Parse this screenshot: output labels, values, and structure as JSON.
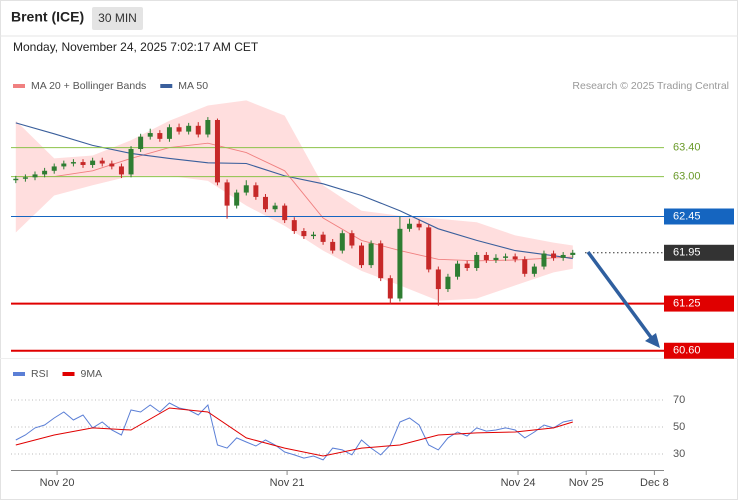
{
  "header": {
    "title": "Brent (ICE)",
    "interval": "30 MIN",
    "datetime": "Monday, November 24, 2025 7:02:17 AM CET"
  },
  "chart_data": [
    {
      "type": "candlestick",
      "credit": "Research © 2025 Trading Central",
      "up_color": "#2e7d32",
      "down_color": "#c62828",
      "xlim": [
        -0.5,
        67.5
      ],
      "ylim": [
        60.5,
        64.4
      ],
      "open": [
        62.95,
        62.97,
        62.99,
        63.03,
        63.08,
        63.14,
        63.18,
        63.2,
        63.16,
        63.22,
        63.18,
        63.14,
        63.03,
        63.38,
        63.55,
        63.6,
        63.52,
        63.68,
        63.62,
        63.7,
        63.58,
        63.78,
        62.92,
        62.6,
        62.78,
        62.88,
        62.72,
        62.55,
        62.6,
        62.4,
        62.25,
        62.18,
        62.2,
        62.1,
        61.98,
        62.22,
        62.05,
        61.78,
        62.08,
        61.6,
        61.32,
        62.28,
        62.35,
        62.3,
        61.72,
        61.45,
        61.62,
        61.8,
        61.74,
        61.92,
        61.85,
        61.88,
        61.9,
        61.86,
        61.66,
        61.76,
        61.94,
        61.88,
        61.92
      ],
      "high": [
        63.01,
        63.03,
        63.07,
        63.12,
        63.18,
        63.22,
        63.24,
        63.24,
        63.26,
        63.26,
        63.22,
        63.18,
        63.42,
        63.59,
        63.66,
        63.64,
        63.72,
        63.73,
        63.74,
        63.75,
        63.82,
        63.8,
        62.96,
        62.82,
        62.95,
        62.92,
        62.76,
        62.64,
        62.63,
        62.44,
        62.29,
        62.24,
        62.24,
        62.14,
        62.26,
        62.26,
        62.09,
        62.12,
        62.12,
        61.64,
        62.45,
        62.42,
        62.4,
        62.34,
        61.76,
        61.66,
        61.84,
        61.84,
        61.96,
        61.96,
        61.93,
        61.94,
        61.94,
        61.9,
        61.8,
        61.98,
        61.98,
        61.96,
        61.99
      ],
      "low": [
        62.91,
        62.93,
        62.95,
        62.99,
        63.04,
        63.1,
        63.14,
        63.12,
        63.12,
        63.14,
        63.1,
        62.98,
        62.99,
        63.34,
        63.51,
        63.48,
        63.48,
        63.58,
        63.58,
        63.54,
        63.54,
        62.88,
        62.42,
        62.56,
        62.74,
        62.68,
        62.51,
        62.51,
        62.36,
        62.21,
        62.14,
        62.14,
        62.06,
        61.94,
        61.94,
        62.01,
        61.74,
        61.74,
        61.56,
        61.24,
        61.28,
        62.24,
        62.26,
        61.68,
        61.22,
        61.41,
        61.58,
        61.7,
        61.7,
        61.81,
        61.81,
        61.84,
        61.82,
        61.62,
        61.62,
        61.72,
        61.84,
        61.84,
        61.88
      ],
      "close": [
        62.97,
        62.99,
        63.03,
        63.08,
        63.14,
        63.18,
        63.2,
        63.16,
        63.22,
        63.18,
        63.14,
        63.03,
        63.38,
        63.55,
        63.6,
        63.52,
        63.68,
        63.62,
        63.7,
        63.58,
        63.78,
        62.92,
        62.6,
        62.78,
        62.88,
        62.72,
        62.55,
        62.6,
        62.4,
        62.25,
        62.18,
        62.2,
        62.1,
        61.98,
        62.22,
        62.05,
        61.78,
        62.08,
        61.6,
        61.32,
        62.28,
        62.35,
        62.3,
        61.72,
        61.45,
        61.62,
        61.8,
        61.74,
        61.92,
        61.85,
        61.88,
        61.9,
        61.86,
        61.66,
        61.76,
        61.94,
        61.88,
        61.92,
        61.95
      ],
      "series": [
        {
          "name": "MA 20 + Bollinger Bands",
          "color": "#f08080",
          "band_color": "#ffd6d6",
          "x": [
            0,
            4,
            8,
            12,
            16,
            20,
            24,
            28,
            32,
            36,
            40,
            44,
            48,
            52,
            56,
            58
          ],
          "values": [
            63.0,
            63.0,
            63.08,
            63.25,
            63.4,
            63.46,
            63.33,
            63.08,
            62.43,
            62.12,
            61.98,
            61.86,
            61.84,
            61.85,
            61.88,
            61.89
          ],
          "upper": [
            63.77,
            63.25,
            63.29,
            63.5,
            63.77,
            63.98,
            64.05,
            63.84,
            62.88,
            62.53,
            62.46,
            62.42,
            62.37,
            62.19,
            62.09,
            62.05
          ],
          "lower": [
            62.23,
            62.74,
            62.88,
            63.01,
            63.01,
            62.94,
            62.6,
            62.32,
            61.98,
            61.7,
            61.5,
            61.29,
            61.32,
            61.5,
            61.68,
            61.73
          ]
        },
        {
          "name": "MA 50",
          "color": "#3a5f9c",
          "x": [
            0,
            4,
            8,
            12,
            16,
            20,
            24,
            28,
            32,
            36,
            40,
            44,
            48,
            52,
            56,
            58
          ],
          "values": [
            63.74,
            63.59,
            63.43,
            63.32,
            63.25,
            63.19,
            63.18,
            63.01,
            62.9,
            62.74,
            62.53,
            62.28,
            62.12,
            61.98,
            61.91,
            61.87
          ]
        }
      ],
      "levels": [
        {
          "value": 63.4,
          "label": "63.40",
          "color": "#8bc34a",
          "style": "thin",
          "boxed": false
        },
        {
          "value": 63.0,
          "label": "63.00",
          "color": "#8bc34a",
          "style": "thin",
          "boxed": false
        },
        {
          "value": 62.45,
          "label": "62.45",
          "color": "#1565c0",
          "style": "thin",
          "boxed": true
        },
        {
          "value": 61.95,
          "label": "61.95",
          "color": "#333333",
          "style": "dotted",
          "boxed": true
        },
        {
          "value": 61.25,
          "label": "61.25",
          "color": "#e00000",
          "style": "thick",
          "boxed": true
        },
        {
          "value": 60.6,
          "label": "60.60",
          "color": "#e00000",
          "style": "thick",
          "boxed": true
        }
      ]
    },
    {
      "type": "line",
      "xlim": [
        -0.5,
        67.5
      ],
      "ylim": [
        20,
        96
      ],
      "yticks": [
        70,
        50,
        30
      ],
      "xticks": [
        {
          "value": 4.3,
          "label": "Nov 20"
        },
        {
          "value": 28.25,
          "label": "Nov 21"
        },
        {
          "value": 52.3,
          "label": "Nov 24"
        },
        {
          "value": 59.4,
          "label": "Nov 25"
        },
        {
          "value": 66.5,
          "label": "Dec 8"
        }
      ],
      "series": [
        {
          "name": "RSI",
          "color": "#5b7fd6",
          "values": [
            40.4,
            44.1,
            49.3,
            51.5,
            56.7,
            61.1,
            55.2,
            58.9,
            49.3,
            53.7,
            47.8,
            44.1,
            62.6,
            61.1,
            66.3,
            61.1,
            67.8,
            64.1,
            62.6,
            58.9,
            66.3,
            36.7,
            34.4,
            41.9,
            38.9,
            35.9,
            40.4,
            36.7,
            31.5,
            29.3,
            27.0,
            28.5,
            25.6,
            34.4,
            33.0,
            29.3,
            40.4,
            34.4,
            29.3,
            36.7,
            53.7,
            56.7,
            51.5,
            36.7,
            33.0,
            41.9,
            46.3,
            43.3,
            49.3,
            47.0,
            47.8,
            49.3,
            47.8,
            41.9,
            46.3,
            51.5,
            49.3,
            53.7,
            55.2
          ]
        },
        {
          "name": "9MA",
          "color": "#e00000",
          "x": [
            0,
            4,
            8,
            12,
            16,
            20,
            24,
            28,
            32,
            36,
            40,
            44,
            48,
            52,
            56,
            58
          ],
          "values": [
            36.7,
            44.1,
            49.3,
            47.8,
            64.1,
            61.1,
            41.9,
            34.4,
            28.5,
            34.4,
            36.7,
            44.1,
            45.6,
            46.3,
            49.3,
            53.7
          ]
        }
      ]
    }
  ]
}
